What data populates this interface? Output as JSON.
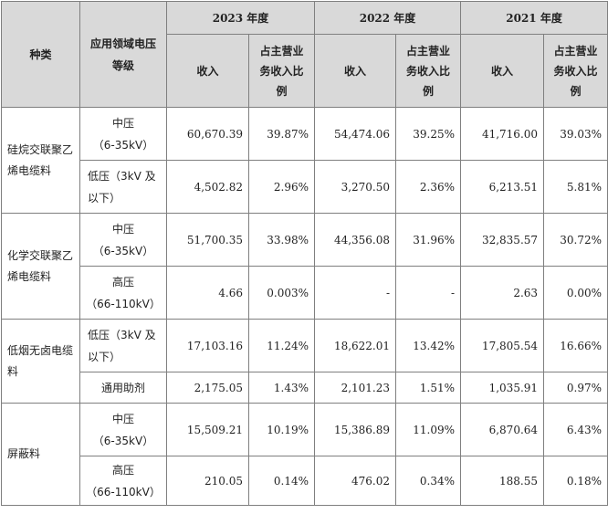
{
  "headers": {
    "category": "种类",
    "voltage": "应用领域电压等级",
    "years": [
      "2023 年度",
      "2022 年度",
      "2021 年度"
    ],
    "revenue": "收入",
    "ratio": "占主营业务收入比例"
  },
  "groups": [
    {
      "category": "硅烷交联聚乙烯电缆料",
      "rows": [
        {
          "level": "中压",
          "level_sub": "（6-35kV）",
          "values": [
            "60,670.39",
            "39.87%",
            "54,474.06",
            "39.25%",
            "41,716.00",
            "39.03%"
          ]
        },
        {
          "level": "低压（3kV 及",
          "level_sub": "以下）",
          "values": [
            "4,502.82",
            "2.96%",
            "3,270.50",
            "2.36%",
            "6,213.51",
            "5.81%"
          ]
        }
      ]
    },
    {
      "category": "化学交联聚乙烯电缆料",
      "rows": [
        {
          "level": "中压",
          "level_sub": "（6-35kV）",
          "values": [
            "51,700.35",
            "33.98%",
            "44,356.08",
            "31.96%",
            "32,835.57",
            "30.72%"
          ]
        },
        {
          "level": "高压",
          "level_sub": "（66-110kV）",
          "values": [
            "4.66",
            "0.003%",
            "-",
            "-",
            "2.63",
            "0.00%"
          ]
        }
      ]
    },
    {
      "category": "低烟无卤电缆料",
      "rows": [
        {
          "level": "低压（3kV 及",
          "level_sub": "以下）",
          "values": [
            "17,103.16",
            "11.24%",
            "18,622.01",
            "13.42%",
            "17,805.54",
            "16.66%"
          ]
        }
      ]
    },
    {
      "category": "",
      "rows": [
        {
          "level": "通用助剂",
          "level_sub": "",
          "values": [
            "2,175.05",
            "1.43%",
            "2,101.23",
            "1.51%",
            "1,035.91",
            "0.97%"
          ]
        }
      ]
    },
    {
      "category": "屏蔽料",
      "rows": [
        {
          "level": "中压",
          "level_sub": "（6-35kV）",
          "values": [
            "15,509.21",
            "10.19%",
            "15,386.89",
            "11.09%",
            "6,870.64",
            "6.43%"
          ]
        },
        {
          "level": "高压",
          "level_sub": "（66-110kV）",
          "values": [
            "210.05",
            "0.14%",
            "476.02",
            "0.34%",
            "188.55",
            "0.18%"
          ]
        }
      ]
    }
  ]
}
